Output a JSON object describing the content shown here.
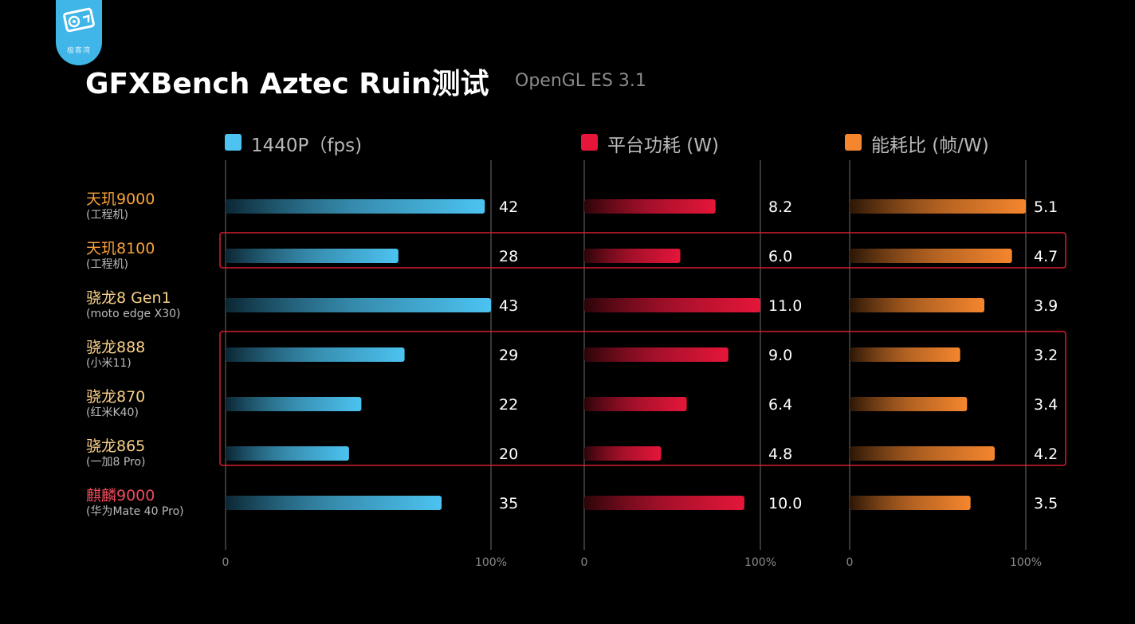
{
  "logo": {
    "text": "极客湾"
  },
  "header": {
    "title": "GFXBench Aztec Ruin测试",
    "subtitle": "OpenGL ES 3.1"
  },
  "colors": {
    "fps": "#4cc3f1",
    "power": "#e5163a",
    "efficiency": "#f5862e",
    "highlight": "#d41f31",
    "dimensity_label": "#f6a23a",
    "snapdragon_label": "#f8d08a",
    "kirin_label": "#ef4a5b"
  },
  "rows": [
    {
      "name": "天玑9000",
      "sub": "(工程机)",
      "label_color": "#f6a23a"
    },
    {
      "name": "天玑8100",
      "sub": "(工程机)",
      "label_color": "#f6a23a"
    },
    {
      "name": "骁龙8 Gen1",
      "sub": "(moto edge X30)",
      "label_color": "#f8d08a"
    },
    {
      "name": "骁龙888",
      "sub": "(小米11)",
      "label_color": "#f8d08a"
    },
    {
      "name": "骁龙870",
      "sub": "(红米K40)",
      "label_color": "#f8d08a"
    },
    {
      "name": "骁龙865",
      "sub": "(一加8 Pro)",
      "label_color": "#f8d08a"
    },
    {
      "name": "麒麟9000",
      "sub": "(华为Mate 40 Pro)",
      "label_color": "#ef4a5b"
    }
  ],
  "chart_data": {
    "type": "bar",
    "orientation": "horizontal",
    "categories": [
      "天玑9000",
      "天玑8100",
      "骁龙8 Gen1",
      "骁龙888",
      "骁龙870",
      "骁龙865",
      "麒麟9000"
    ],
    "series": [
      {
        "name": "1440P（fps)",
        "color": "#4cc3f1",
        "values": [
          42,
          28,
          43,
          29,
          22,
          20,
          35
        ],
        "value_labels": [
          "42",
          "28",
          "43",
          "29",
          "22",
          "20",
          "35"
        ],
        "max": 43,
        "axis_ticks": [
          "0",
          "100%"
        ]
      },
      {
        "name": "平台功耗 (W)",
        "color": "#e5163a",
        "values": [
          8.2,
          6.0,
          11.0,
          9.0,
          6.4,
          4.8,
          10.0
        ],
        "value_labels": [
          "8.2",
          "6.0",
          "11.0",
          "9.0",
          "6.4",
          "4.8",
          "10.0"
        ],
        "max": 11.0,
        "axis_ticks": [
          "0",
          "100%"
        ]
      },
      {
        "name": "能耗比 (帧/W)",
        "color": "#f5862e",
        "values": [
          5.1,
          4.7,
          3.9,
          3.2,
          3.4,
          4.2,
          3.5
        ],
        "value_labels": [
          "5.1",
          "4.7",
          "3.9",
          "3.2",
          "3.4",
          "4.2",
          "3.5"
        ],
        "max": 5.1,
        "axis_ticks": [
          "0",
          "100%"
        ]
      }
    ],
    "highlight_groups": [
      [
        "天玑8100"
      ],
      [
        "骁龙888",
        "骁龙870",
        "骁龙865"
      ]
    ],
    "grid": false
  }
}
